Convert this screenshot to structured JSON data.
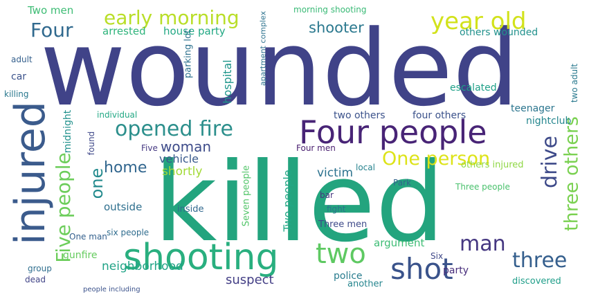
{
  "words": [
    {
      "text": "wounded",
      "color": "#404388"
    },
    {
      "text": "killed",
      "color": "#23a47e"
    },
    {
      "text": "shooting",
      "color": "#29af7f"
    },
    {
      "text": "injured",
      "color": "#3b5b8c"
    },
    {
      "text": "Four people",
      "color": "#482476"
    },
    {
      "text": "shot",
      "color": "#3a538b"
    },
    {
      "text": "opened fire",
      "color": "#2c8f8c"
    },
    {
      "text": "Five people",
      "color": "#6ccd5a"
    },
    {
      "text": "two",
      "color": "#5ec962"
    },
    {
      "text": "early morning",
      "color": "#b9de28"
    },
    {
      "text": "year old",
      "color": "#d2e21b"
    },
    {
      "text": "Four",
      "color": "#30698e"
    },
    {
      "text": "One person",
      "color": "#dde318"
    },
    {
      "text": "drive",
      "color": "#3e4a89"
    },
    {
      "text": "three others",
      "color": "#7ad151"
    },
    {
      "text": "man",
      "color": "#453781"
    },
    {
      "text": "three",
      "color": "#355f8d"
    },
    {
      "text": "shooter",
      "color": "#2a788e"
    },
    {
      "text": "one",
      "color": "#238a8d"
    },
    {
      "text": "home",
      "color": "#31668e"
    },
    {
      "text": "woman",
      "color": "#3e4c8a"
    },
    {
      "text": "vehicle",
      "color": "#38598c"
    },
    {
      "text": "shortly",
      "color": "#a2da37"
    },
    {
      "text": "victim",
      "color": "#2c728e"
    },
    {
      "text": "Two people",
      "color": "#22a785"
    },
    {
      "text": "hospital",
      "color": "#1f968b"
    },
    {
      "text": "neighborhood",
      "color": "#20a386"
    },
    {
      "text": "suspect",
      "color": "#433e85"
    },
    {
      "text": "police",
      "color": "#287c8e"
    },
    {
      "text": "party",
      "color": "#472d7b"
    },
    {
      "text": "argument",
      "color": "#3dbc74"
    },
    {
      "text": "outside",
      "color": "#2e6f8e"
    },
    {
      "text": "gunfire",
      "color": "#65cb5e"
    },
    {
      "text": "Two men",
      "color": "#3dbc74"
    },
    {
      "text": "arrested",
      "color": "#2fb47c"
    },
    {
      "text": "house party",
      "color": "#22a884"
    },
    {
      "text": "others wounded",
      "color": "#21918c"
    },
    {
      "text": "two others",
      "color": "#3b528b"
    },
    {
      "text": "four others",
      "color": "#3b528b"
    },
    {
      "text": "teenager",
      "color": "#2b758e"
    },
    {
      "text": "nightclub",
      "color": "#24868e"
    },
    {
      "text": "escalated",
      "color": "#1fa088"
    },
    {
      "text": "two adult",
      "color": "#29798e"
    },
    {
      "text": "morning shooting",
      "color": "#3aba76"
    },
    {
      "text": "apartment complex",
      "color": "#2c728e"
    },
    {
      "text": "parking lot",
      "color": "#2d718e"
    },
    {
      "text": "midnight",
      "color": "#21918c"
    },
    {
      "text": "car",
      "color": "#3b528b"
    },
    {
      "text": "killing",
      "color": "#2a788e"
    },
    {
      "text": "adult",
      "color": "#35608d"
    },
    {
      "text": "individual",
      "color": "#22a884"
    },
    {
      "text": "found",
      "color": "#3f4889"
    },
    {
      "text": "Five",
      "color": "#453882"
    },
    {
      "text": "local",
      "color": "#26828e"
    },
    {
      "text": "Four men",
      "color": "#481d6f"
    },
    {
      "text": "others injured",
      "color": "#8fd744"
    },
    {
      "text": "Three people",
      "color": "#4ac16d"
    },
    {
      "text": "inside",
      "color": "#31688e"
    },
    {
      "text": "Seven people",
      "color": "#52c569"
    },
    {
      "text": "fight",
      "color": "#2c738e"
    },
    {
      "text": "Three men",
      "color": "#3e4a89"
    },
    {
      "text": "bar",
      "color": "#46337e"
    },
    {
      "text": "Park",
      "color": "#33638d"
    },
    {
      "text": "six people",
      "color": "#2f6c8e"
    },
    {
      "text": "One man",
      "color": "#34608d"
    },
    {
      "text": "Six",
      "color": "#3f4788"
    },
    {
      "text": "another",
      "color": "#25858e"
    },
    {
      "text": "discovered",
      "color": "#1f9e89"
    },
    {
      "text": "group",
      "color": "#2e6e8e"
    },
    {
      "text": "dead",
      "color": "#414487"
    },
    {
      "text": "people including",
      "color": "#3b528b"
    }
  ]
}
